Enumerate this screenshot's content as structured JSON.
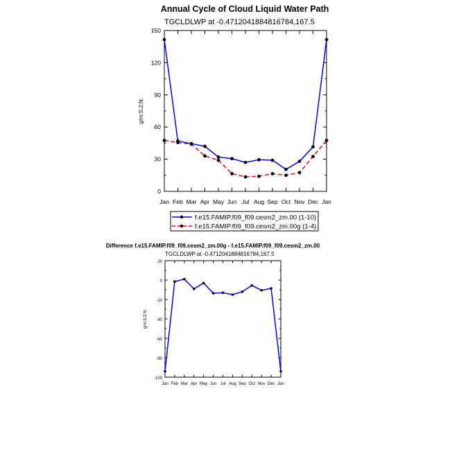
{
  "chart_data": [
    {
      "type": "line",
      "title": "Annual Cycle of Cloud Liquid Water Path",
      "subtitle": "TGCLDLWP at -0.4712041884816784,167.5",
      "ylabel": "g/m:S:2:N:",
      "xlabel": "",
      "ylim": [
        0,
        150
      ],
      "yticks": [
        0,
        30,
        60,
        90,
        120,
        150
      ],
      "categories": [
        "Jan",
        "Feb",
        "Mar",
        "Apr",
        "May",
        "Jun",
        "Jul",
        "Aug",
        "Sep",
        "Oct",
        "Nov",
        "Dec",
        "Jan"
      ],
      "series": [
        {
          "name": "f.e15.FAMIP.f09_f09.cesm2_zm.00 (1-10)",
          "color": "#0000ff",
          "dash": "solid",
          "values": [
            141.5,
            47,
            44.5,
            42,
            32,
            30.5,
            27,
            29.5,
            29,
            20.5,
            28,
            41.5,
            141.5
          ]
        },
        {
          "name": "f.e15.FAMIP.f09_f09.cesm2_zm.00g (1-4)",
          "color": "#ff0000",
          "dash": "dashed",
          "values": [
            47.5,
            45.5,
            44,
            33,
            29,
            16.5,
            13.5,
            14,
            16.5,
            15,
            17.5,
            32.5,
            47.5
          ]
        }
      ]
    },
    {
      "type": "line",
      "title": "Difference f.e15.FAMIP.f09_f09.cesm2_zm.00g - f.e15.FAMIP.f09_f09.cesm2_zm.00",
      "subtitle": "TGCLDLWP at -0.4712041884816784,167.5",
      "ylabel": "g/m:S:2:N:",
      "xlabel": "",
      "ylim": [
        -100,
        20
      ],
      "yticks": [
        -100,
        -80,
        -60,
        -40,
        -20,
        0,
        20
      ],
      "categories": [
        "Jan",
        "Feb",
        "Mar",
        "Apr",
        "May",
        "Jun",
        "Jul",
        "Aug",
        "Sep",
        "Oct",
        "Nov",
        "Dec",
        "Jan"
      ],
      "series": [
        {
          "name": "difference",
          "color": "#0000ff",
          "dash": "solid",
          "values": [
            -94,
            -1.5,
            1,
            -9,
            -3,
            -13.5,
            -13,
            -15,
            -12,
            -5.5,
            -10.5,
            -8.5,
            -94
          ]
        }
      ]
    }
  ]
}
